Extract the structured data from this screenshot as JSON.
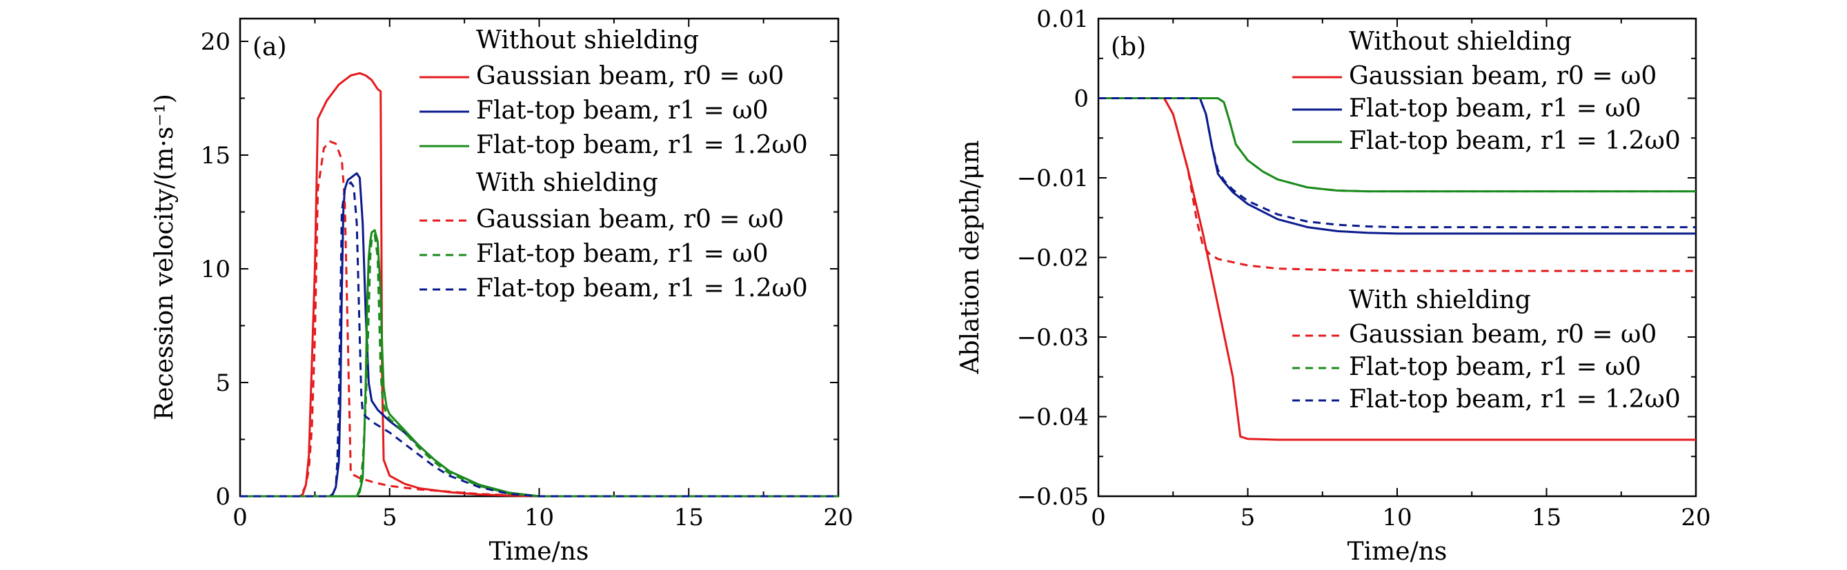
{
  "colors": {
    "red": "#e41a1c",
    "blue": "#0a1a8c",
    "green": "#1b8a1b",
    "axis": "#000000"
  },
  "chart_data": [
    {
      "type": "line",
      "panel_label": "(a)",
      "xlabel": "Time/ns",
      "ylabel": "Recession velocity/(m·s⁻¹)",
      "xlim": [
        0,
        20
      ],
      "ylim": [
        0,
        21
      ],
      "x_ticks": [
        "0",
        "5",
        "10",
        "15",
        "20"
      ],
      "y_ticks": [
        "0",
        "5",
        "10",
        "15",
        "20"
      ],
      "x_tick_values": [
        0,
        5,
        10,
        15,
        20
      ],
      "y_tick_values": [
        0,
        5,
        10,
        15,
        20
      ],
      "legend_groups": [
        {
          "heading": "Without shielding",
          "entries": [
            0,
            1,
            2
          ]
        },
        {
          "heading": "With shielding",
          "entries": [
            3,
            4,
            5
          ]
        }
      ],
      "legend_position": "top-right",
      "series": [
        {
          "name": "Gaussian beam, r0 = ω0",
          "color": "red",
          "dash": "solid",
          "x": [
            0,
            2.0,
            2.1,
            2.2,
            2.3,
            2.5,
            2.6,
            2.9,
            3.3,
            3.7,
            4.0,
            4.2,
            4.4,
            4.6,
            4.7,
            4.75,
            4.8,
            5.0,
            5.5,
            6.0,
            7.0,
            8.0,
            9.0,
            10,
            20
          ],
          "y": [
            0,
            0,
            0.1,
            0.5,
            1.8,
            10,
            16.6,
            17.4,
            18.1,
            18.5,
            18.6,
            18.5,
            18.3,
            17.9,
            17.8,
            5,
            1.6,
            0.9,
            0.55,
            0.35,
            0.18,
            0.08,
            0.03,
            0,
            0
          ]
        },
        {
          "name": "Flat-top beam, r1 = ω0",
          "color": "blue",
          "dash": "solid",
          "x": [
            0,
            3.0,
            3.1,
            3.2,
            3.3,
            3.35,
            3.4,
            3.45,
            3.5,
            3.6,
            3.8,
            3.9,
            4.0,
            4.1,
            4.2,
            4.3,
            4.4,
            4.6,
            5.0,
            5.5,
            6.0,
            6.5,
            7.0,
            8.0,
            9.0,
            10,
            20
          ],
          "y": [
            0,
            0,
            0.1,
            0.4,
            1.5,
            4,
            9,
            12.5,
            13.5,
            13.9,
            14.1,
            14.2,
            14.0,
            12,
            8,
            5,
            4.2,
            3.8,
            3.3,
            2.8,
            2.2,
            1.6,
            1.1,
            0.5,
            0.15,
            0,
            0
          ]
        },
        {
          "name": "Flat-top beam, r1 = 1.2ω0",
          "color": "green",
          "dash": "solid",
          "x": [
            0,
            3.9,
            4.0,
            4.1,
            4.15,
            4.2,
            4.25,
            4.3,
            4.35,
            4.4,
            4.5,
            4.6,
            4.7,
            4.75,
            4.8,
            4.9,
            5.0,
            5.5,
            6.0,
            6.5,
            7.0,
            8.0,
            9.0,
            10,
            20
          ],
          "y": [
            0,
            0,
            0.2,
            0.8,
            2.5,
            5,
            8.5,
            10.5,
            11.2,
            11.6,
            11.7,
            11.2,
            9.0,
            6.5,
            4.8,
            3.9,
            3.6,
            2.9,
            2.2,
            1.6,
            1.1,
            0.5,
            0.15,
            0,
            0
          ]
        },
        {
          "name": "Gaussian beam, r0 = ω0",
          "color": "red",
          "dash": "dashed",
          "x": [
            0,
            2.0,
            2.1,
            2.2,
            2.3,
            2.4,
            2.5,
            2.6,
            2.8,
            3.0,
            3.2,
            3.4,
            3.5,
            3.6,
            3.7,
            4.0,
            4.5,
            5.0,
            6.0,
            7.0,
            8.0,
            9.0,
            10,
            20
          ],
          "y": [
            0,
            0,
            0.2,
            0.5,
            1.2,
            3,
            7,
            13.5,
            15.3,
            15.6,
            15.5,
            14.8,
            13,
            7,
            1.0,
            0.8,
            0.6,
            0.45,
            0.3,
            0.2,
            0.1,
            0.05,
            0,
            0
          ]
        },
        {
          "name": "Flat-top beam, r1 = ω0",
          "color": "green",
          "dash": "dashed",
          "x": [
            0,
            3.9,
            4.0,
            4.1,
            4.2,
            4.3,
            4.35,
            4.4,
            4.5,
            4.6,
            4.65,
            4.7,
            4.75,
            4.8,
            4.9,
            5.0,
            5.5,
            6.0,
            6.5,
            7.0,
            8.0,
            9.0,
            10,
            20
          ],
          "y": [
            0,
            0,
            0.3,
            1.5,
            4,
            8,
            10.5,
            11.3,
            11.5,
            10.5,
            8,
            5.5,
            4.5,
            4.0,
            3.6,
            3.4,
            2.8,
            2.1,
            1.5,
            1.0,
            0.45,
            0.12,
            0,
            0
          ]
        },
        {
          "name": "Flat-top beam, r1 = 1.2ω0",
          "color": "blue",
          "dash": "dashed",
          "x": [
            0,
            3.0,
            3.1,
            3.2,
            3.25,
            3.3,
            3.35,
            3.4,
            3.5,
            3.7,
            3.8,
            3.9,
            4.0,
            4.05,
            4.1,
            4.2,
            4.5,
            5.0,
            5.5,
            6.0,
            6.5,
            7.0,
            8.0,
            9.0,
            10,
            20
          ],
          "y": [
            0,
            0,
            0.1,
            0.4,
            1.5,
            4,
            8,
            12.5,
            13.5,
            13.8,
            13.6,
            12,
            7,
            4.5,
            3.7,
            3.5,
            3.2,
            2.8,
            2.3,
            1.8,
            1.3,
            0.9,
            0.4,
            0.1,
            0,
            0
          ]
        }
      ]
    },
    {
      "type": "line",
      "panel_label": "(b)",
      "xlabel": "Time/ns",
      "ylabel": "Ablation depth/μm",
      "xlim": [
        0,
        20
      ],
      "ylim": [
        -0.05,
        0.01
      ],
      "x_ticks": [
        "0",
        "5",
        "10",
        "15",
        "20"
      ],
      "y_ticks": [
        "0.01",
        "0",
        "−0.01",
        "−0.02",
        "−0.03",
        "−0.04",
        "−0.05"
      ],
      "x_tick_values": [
        0,
        5,
        10,
        15,
        20
      ],
      "y_tick_values": [
        0.01,
        0,
        -0.01,
        -0.02,
        -0.03,
        -0.04,
        -0.05
      ],
      "legend_groups": [
        {
          "heading": "Without shielding",
          "entries": [
            0,
            1,
            2
          ]
        },
        {
          "heading": "With shielding",
          "entries": [
            3,
            4,
            5
          ]
        }
      ],
      "legend_position": "top-right and center-right",
      "series": [
        {
          "name": "Gaussian beam, r0 = ω0",
          "color": "red",
          "dash": "solid",
          "x": [
            0,
            2.2,
            2.5,
            3.0,
            3.5,
            4.0,
            4.5,
            4.75,
            5.0,
            6.0,
            8.0,
            10,
            15,
            20
          ],
          "y": [
            0,
            0,
            -0.002,
            -0.009,
            -0.017,
            -0.026,
            -0.035,
            -0.0425,
            -0.0428,
            -0.0429,
            -0.0429,
            -0.0429,
            -0.0429,
            -0.0429
          ]
        },
        {
          "name": "Flat-top beam, r1 = ω0",
          "color": "blue",
          "dash": "solid",
          "x": [
            0,
            3.4,
            3.6,
            3.8,
            4.0,
            4.2,
            4.5,
            5.0,
            6.0,
            7.0,
            8.0,
            9.0,
            10,
            12,
            15,
            20
          ],
          "y": [
            0,
            0,
            -0.002,
            -0.006,
            -0.0095,
            -0.0105,
            -0.0118,
            -0.0133,
            -0.0152,
            -0.0162,
            -0.0167,
            -0.0169,
            -0.017,
            -0.017,
            -0.017,
            -0.017
          ]
        },
        {
          "name": "Flat-top beam, r1 = 1.2ω0",
          "color": "green",
          "dash": "solid",
          "x": [
            0,
            4.0,
            4.2,
            4.4,
            4.6,
            4.8,
            5.0,
            5.5,
            6.0,
            7.0,
            8.0,
            9.0,
            10,
            12,
            15,
            20
          ],
          "y": [
            0,
            0,
            -0.0005,
            -0.003,
            -0.0058,
            -0.0068,
            -0.0078,
            -0.0092,
            -0.0102,
            -0.0112,
            -0.0116,
            -0.0117,
            -0.0117,
            -0.0117,
            -0.0117,
            -0.0117
          ]
        },
        {
          "name": "Gaussian beam, r0 = ω0",
          "color": "red",
          "dash": "dashed",
          "x": [
            0,
            2.2,
            2.5,
            3.0,
            3.3,
            3.5,
            3.7,
            4.0,
            5.0,
            6.0,
            8.0,
            10,
            15,
            20
          ],
          "y": [
            0,
            0,
            -0.002,
            -0.009,
            -0.0155,
            -0.0185,
            -0.0195,
            -0.0202,
            -0.021,
            -0.0214,
            -0.0216,
            -0.0217,
            -0.0217,
            -0.0217
          ]
        },
        {
          "name": "Flat-top beam, r1 = ω0",
          "color": "green",
          "dash": "dashed",
          "x": [
            0,
            4.0,
            4.2,
            4.4,
            4.6,
            4.8,
            5.0,
            5.5,
            6.0,
            7.0,
            8.0,
            9.0,
            10,
            12,
            15,
            20
          ],
          "y": [
            0,
            0,
            -0.0005,
            -0.003,
            -0.0058,
            -0.0068,
            -0.0078,
            -0.0092,
            -0.0102,
            -0.0112,
            -0.0116,
            -0.0117,
            -0.0117,
            -0.0117,
            -0.0117,
            -0.0117
          ]
        },
        {
          "name": "Flat-top beam, r1 = 1.2ω0",
          "color": "blue",
          "dash": "dashed",
          "x": [
            0,
            3.4,
            3.6,
            3.8,
            4.0,
            4.2,
            4.5,
            5.0,
            6.0,
            7.0,
            8.0,
            9.0,
            10,
            12,
            15,
            20
          ],
          "y": [
            0,
            0,
            -0.002,
            -0.006,
            -0.009,
            -0.0103,
            -0.0115,
            -0.0129,
            -0.0146,
            -0.0155,
            -0.0159,
            -0.0161,
            -0.0162,
            -0.0162,
            -0.0162,
            -0.0162
          ]
        }
      ]
    }
  ]
}
